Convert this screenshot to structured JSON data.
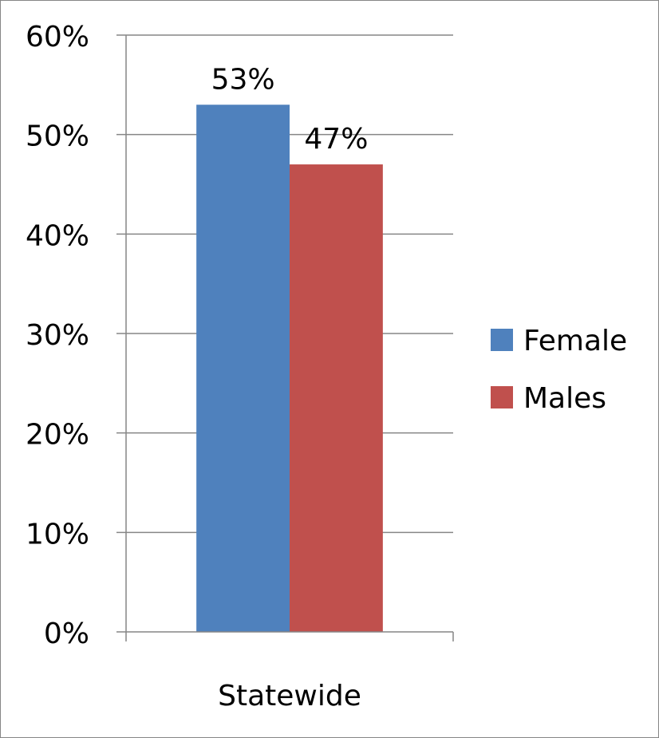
{
  "chart_data": {
    "type": "bar",
    "categories": [
      "Statewide"
    ],
    "series": [
      {
        "name": "Female",
        "values": [
          53
        ],
        "data_labels": [
          "53%"
        ],
        "color": "#4F81BD"
      },
      {
        "name": "Males",
        "values": [
          47
        ],
        "data_labels": [
          "47%"
        ],
        "color": "#C0504D"
      }
    ],
    "ylim": [
      0,
      60
    ],
    "yticks": [
      0,
      10,
      20,
      30,
      40,
      50,
      60
    ],
    "ytick_labels": [
      "0%",
      "10%",
      "20%",
      "30%",
      "40%",
      "50%",
      "60%"
    ],
    "grid": true,
    "legend_position": "right",
    "gridline_color": "#868686"
  }
}
